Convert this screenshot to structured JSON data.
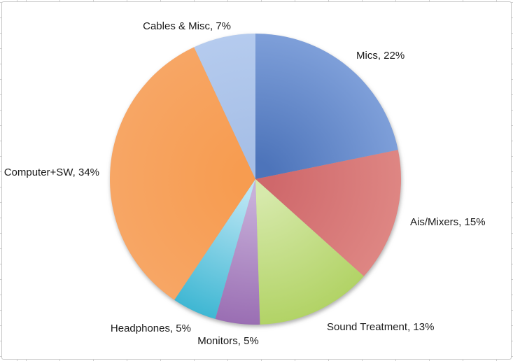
{
  "chart_data": {
    "type": "pie",
    "title": "",
    "legend": "none",
    "start_angle_deg": 0,
    "direction": "clockwise",
    "label_format": "{label}, {pct}%",
    "slices": [
      {
        "label": "Mics",
        "pct": 22,
        "color_inner": "#4D74BA",
        "color_outer": "#7E9FD9"
      },
      {
        "label": "Ais/Mixers",
        "pct": 15,
        "color_inner": "#CF686B",
        "color_outer": "#DE8683"
      },
      {
        "label": "Sound Treatment",
        "pct": 13,
        "color_inner": "#D6E9AB",
        "color_outer": "#B2D366"
      },
      {
        "label": "Monitors",
        "pct": 5,
        "color_inner": "#C7AFD9",
        "color_outer": "#9A6EB3"
      },
      {
        "label": "Headphones",
        "pct": 5,
        "color_inner": "#B9E5F4",
        "color_outer": "#3FB7D3"
      },
      {
        "label": "Computer+SW",
        "pct": 34,
        "color_inner": "#F79C50",
        "color_outer": "#F7A665"
      },
      {
        "label": "Cables & Misc",
        "pct": 7,
        "color_inner": "#A5BEE6",
        "color_outer": "#B5CBEE"
      }
    ],
    "label_texts": [
      "Mics, 22%",
      "Ais/Mixers, 15%",
      "Sound Treatment, 13%",
      "Monitors, 5%",
      "Headphones, 5%",
      "Computer+SW, 34%",
      "Cables & Misc, 7%"
    ]
  },
  "chrome": {
    "chart_background": "#FFFFFF",
    "sheet_background": "#FFFFFF",
    "frame_border_color": "#C6C6C6",
    "gridline_tick_color": "#CFCFCF",
    "label_color": "#1A1A1A"
  }
}
